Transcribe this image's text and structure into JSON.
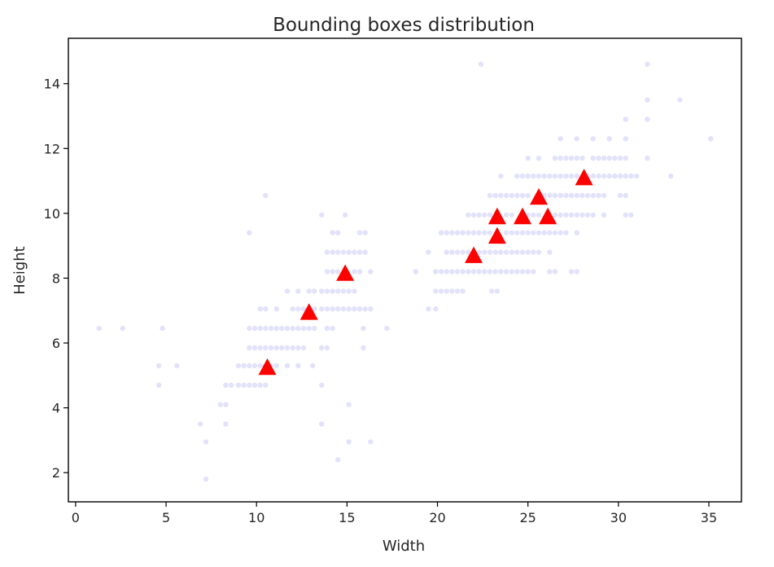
{
  "chart_data": {
    "type": "scatter",
    "title": "Bounding boxes distribution",
    "xlabel": "Width",
    "ylabel": "Height",
    "xlim": [
      -0.4,
      36.8
    ],
    "ylim": [
      1.1,
      15.4
    ],
    "xticks": [
      0,
      5,
      10,
      15,
      20,
      25,
      30,
      35
    ],
    "yticks": [
      2,
      4,
      6,
      8,
      10,
      12,
      14
    ],
    "grid": false,
    "legend": "none",
    "colors": {
      "boxes": "#e2e2fb",
      "centroids": "#ff0000",
      "axes": "#000000",
      "text": "#262626"
    },
    "series": [
      {
        "marker": "circle",
        "color": "#e2e2fb",
        "points": [
          [
            1.3,
            6.45
          ],
          [
            2.6,
            6.45
          ],
          [
            4.6,
            5.3
          ],
          [
            4.8,
            6.45
          ],
          [
            5.6,
            5.3
          ],
          [
            4.6,
            4.7
          ],
          [
            6.9,
            3.5
          ],
          [
            7.2,
            2.95
          ],
          [
            7.2,
            1.8
          ],
          [
            8.0,
            4.1
          ],
          [
            8.3,
            4.1
          ],
          [
            8.3,
            4.7
          ],
          [
            8.3,
            3.5
          ],
          [
            8.6,
            4.7
          ],
          [
            9.0,
            4.7
          ],
          [
            9.3,
            4.7
          ],
          [
            9.6,
            4.7
          ],
          [
            9.9,
            4.7
          ],
          [
            10.2,
            4.7
          ],
          [
            10.5,
            4.7
          ],
          [
            9.0,
            5.3
          ],
          [
            9.3,
            5.3
          ],
          [
            9.6,
            5.3
          ],
          [
            9.9,
            5.3
          ],
          [
            10.2,
            5.3
          ],
          [
            10.5,
            5.3
          ],
          [
            10.8,
            5.3
          ],
          [
            11.1,
            5.3
          ],
          [
            11.7,
            5.3
          ],
          [
            12.3,
            5.3
          ],
          [
            13.1,
            5.3
          ],
          [
            13.6,
            4.7
          ],
          [
            13.6,
            3.5
          ],
          [
            9.6,
            5.85
          ],
          [
            9.9,
            5.85
          ],
          [
            10.2,
            5.85
          ],
          [
            10.5,
            5.85
          ],
          [
            10.8,
            5.85
          ],
          [
            11.1,
            5.85
          ],
          [
            11.4,
            5.85
          ],
          [
            11.7,
            5.85
          ],
          [
            12.0,
            5.85
          ],
          [
            12.3,
            5.85
          ],
          [
            12.6,
            5.85
          ],
          [
            13.6,
            5.85
          ],
          [
            13.9,
            5.85
          ],
          [
            15.9,
            5.85
          ],
          [
            9.6,
            6.45
          ],
          [
            9.9,
            6.45
          ],
          [
            10.2,
            6.45
          ],
          [
            10.5,
            6.45
          ],
          [
            10.8,
            6.45
          ],
          [
            11.1,
            6.45
          ],
          [
            11.4,
            6.45
          ],
          [
            11.7,
            6.45
          ],
          [
            12.0,
            6.45
          ],
          [
            12.3,
            6.45
          ],
          [
            12.6,
            6.45
          ],
          [
            12.9,
            6.45
          ],
          [
            13.2,
            6.45
          ],
          [
            13.9,
            6.45
          ],
          [
            14.2,
            6.45
          ],
          [
            15.9,
            6.45
          ],
          [
            17.2,
            6.45
          ],
          [
            10.2,
            7.05
          ],
          [
            10.5,
            7.05
          ],
          [
            11.1,
            7.05
          ],
          [
            12.0,
            7.05
          ],
          [
            12.3,
            7.05
          ],
          [
            12.6,
            7.05
          ],
          [
            12.9,
            7.05
          ],
          [
            13.2,
            7.05
          ],
          [
            13.6,
            7.05
          ],
          [
            13.9,
            7.05
          ],
          [
            14.2,
            7.05
          ],
          [
            14.5,
            7.05
          ],
          [
            14.8,
            7.05
          ],
          [
            15.1,
            7.05
          ],
          [
            15.4,
            7.05
          ],
          [
            15.7,
            7.05
          ],
          [
            16.0,
            7.05
          ],
          [
            16.3,
            7.05
          ],
          [
            11.7,
            7.6
          ],
          [
            12.3,
            7.6
          ],
          [
            12.9,
            7.6
          ],
          [
            13.2,
            7.6
          ],
          [
            13.6,
            7.6
          ],
          [
            13.9,
            7.6
          ],
          [
            14.2,
            7.6
          ],
          [
            14.5,
            7.6
          ],
          [
            14.8,
            7.6
          ],
          [
            15.1,
            7.6
          ],
          [
            15.4,
            7.6
          ],
          [
            13.9,
            8.2
          ],
          [
            14.2,
            8.2
          ],
          [
            14.5,
            8.2
          ],
          [
            15.4,
            8.2
          ],
          [
            15.7,
            8.2
          ],
          [
            16.3,
            8.2
          ],
          [
            13.9,
            8.8
          ],
          [
            14.2,
            8.8
          ],
          [
            14.5,
            8.8
          ],
          [
            14.8,
            8.8
          ],
          [
            15.1,
            8.8
          ],
          [
            15.4,
            8.8
          ],
          [
            15.7,
            8.8
          ],
          [
            16.0,
            8.8
          ],
          [
            14.2,
            9.4
          ],
          [
            14.5,
            9.4
          ],
          [
            15.7,
            9.4
          ],
          [
            16.0,
            9.4
          ],
          [
            9.6,
            9.4
          ],
          [
            10.5,
            10.55
          ],
          [
            14.9,
            9.95
          ],
          [
            13.6,
            9.95
          ],
          [
            14.5,
            2.4
          ],
          [
            15.1,
            2.95
          ],
          [
            16.3,
            2.95
          ],
          [
            15.1,
            4.1
          ],
          [
            19.5,
            7.05
          ],
          [
            19.9,
            7.05
          ],
          [
            19.9,
            7.6
          ],
          [
            20.2,
            7.6
          ],
          [
            20.5,
            7.6
          ],
          [
            20.8,
            7.6
          ],
          [
            21.1,
            7.6
          ],
          [
            21.4,
            7.6
          ],
          [
            23.0,
            7.6
          ],
          [
            23.3,
            7.6
          ],
          [
            18.8,
            8.2
          ],
          [
            19.9,
            8.2
          ],
          [
            20.2,
            8.2
          ],
          [
            20.5,
            8.2
          ],
          [
            20.8,
            8.2
          ],
          [
            21.1,
            8.2
          ],
          [
            21.4,
            8.2
          ],
          [
            21.7,
            8.2
          ],
          [
            22.0,
            8.2
          ],
          [
            22.3,
            8.2
          ],
          [
            22.6,
            8.2
          ],
          [
            22.9,
            8.2
          ],
          [
            23.2,
            8.2
          ],
          [
            23.5,
            8.2
          ],
          [
            23.8,
            8.2
          ],
          [
            24.1,
            8.2
          ],
          [
            24.4,
            8.2
          ],
          [
            24.7,
            8.2
          ],
          [
            25.0,
            8.2
          ],
          [
            25.3,
            8.2
          ],
          [
            26.2,
            8.2
          ],
          [
            26.5,
            8.2
          ],
          [
            27.4,
            8.2
          ],
          [
            27.7,
            8.2
          ],
          [
            19.5,
            8.8
          ],
          [
            20.5,
            8.8
          ],
          [
            20.8,
            8.8
          ],
          [
            21.1,
            8.8
          ],
          [
            21.4,
            8.8
          ],
          [
            21.7,
            8.8
          ],
          [
            22.3,
            8.8
          ],
          [
            22.6,
            8.8
          ],
          [
            22.9,
            8.8
          ],
          [
            23.2,
            8.8
          ],
          [
            23.5,
            8.8
          ],
          [
            23.8,
            8.8
          ],
          [
            24.1,
            8.8
          ],
          [
            24.4,
            8.8
          ],
          [
            24.7,
            8.8
          ],
          [
            25.0,
            8.8
          ],
          [
            25.3,
            8.8
          ],
          [
            25.6,
            8.8
          ],
          [
            26.2,
            8.8
          ],
          [
            20.2,
            9.4
          ],
          [
            20.5,
            9.4
          ],
          [
            20.8,
            9.4
          ],
          [
            21.1,
            9.4
          ],
          [
            21.4,
            9.4
          ],
          [
            21.7,
            9.4
          ],
          [
            22.0,
            9.4
          ],
          [
            22.3,
            9.4
          ],
          [
            22.6,
            9.4
          ],
          [
            22.9,
            9.4
          ],
          [
            23.8,
            9.4
          ],
          [
            24.1,
            9.4
          ],
          [
            24.4,
            9.4
          ],
          [
            24.7,
            9.4
          ],
          [
            25.0,
            9.4
          ],
          [
            25.3,
            9.4
          ],
          [
            25.6,
            9.4
          ],
          [
            25.9,
            9.4
          ],
          [
            26.2,
            9.4
          ],
          [
            26.5,
            9.4
          ],
          [
            26.8,
            9.4
          ],
          [
            27.1,
            9.4
          ],
          [
            27.7,
            9.4
          ],
          [
            21.7,
            9.95
          ],
          [
            22.0,
            9.95
          ],
          [
            22.3,
            9.95
          ],
          [
            22.6,
            9.95
          ],
          [
            22.9,
            9.95
          ],
          [
            23.8,
            9.95
          ],
          [
            24.1,
            9.95
          ],
          [
            25.0,
            9.95
          ],
          [
            25.3,
            9.95
          ],
          [
            25.6,
            9.95
          ],
          [
            26.5,
            9.95
          ],
          [
            26.8,
            9.95
          ],
          [
            27.1,
            9.95
          ],
          [
            27.4,
            9.95
          ],
          [
            27.7,
            9.95
          ],
          [
            28.0,
            9.95
          ],
          [
            28.3,
            9.95
          ],
          [
            28.6,
            9.95
          ],
          [
            29.2,
            9.95
          ],
          [
            30.4,
            9.95
          ],
          [
            30.7,
            9.95
          ],
          [
            22.9,
            10.55
          ],
          [
            23.2,
            10.55
          ],
          [
            23.5,
            10.55
          ],
          [
            23.8,
            10.55
          ],
          [
            24.1,
            10.55
          ],
          [
            24.4,
            10.55
          ],
          [
            24.7,
            10.55
          ],
          [
            25.0,
            10.55
          ],
          [
            25.9,
            10.55
          ],
          [
            26.2,
            10.55
          ],
          [
            26.5,
            10.55
          ],
          [
            26.8,
            10.55
          ],
          [
            27.1,
            10.55
          ],
          [
            27.4,
            10.55
          ],
          [
            27.7,
            10.55
          ],
          [
            28.0,
            10.55
          ],
          [
            28.3,
            10.55
          ],
          [
            28.6,
            10.55
          ],
          [
            28.9,
            10.55
          ],
          [
            29.2,
            10.55
          ],
          [
            30.1,
            10.55
          ],
          [
            30.4,
            10.55
          ],
          [
            23.5,
            11.15
          ],
          [
            24.4,
            11.15
          ],
          [
            24.7,
            11.15
          ],
          [
            25.0,
            11.15
          ],
          [
            25.3,
            11.15
          ],
          [
            25.6,
            11.15
          ],
          [
            25.9,
            11.15
          ],
          [
            26.2,
            11.15
          ],
          [
            26.5,
            11.15
          ],
          [
            26.8,
            11.15
          ],
          [
            27.1,
            11.15
          ],
          [
            27.4,
            11.15
          ],
          [
            27.7,
            11.15
          ],
          [
            28.3,
            11.15
          ],
          [
            28.6,
            11.15
          ],
          [
            28.9,
            11.15
          ],
          [
            29.2,
            11.15
          ],
          [
            29.5,
            11.15
          ],
          [
            29.8,
            11.15
          ],
          [
            30.1,
            11.15
          ],
          [
            30.4,
            11.15
          ],
          [
            30.7,
            11.15
          ],
          [
            31.0,
            11.15
          ],
          [
            32.9,
            11.15
          ],
          [
            25.0,
            11.7
          ],
          [
            25.6,
            11.7
          ],
          [
            26.5,
            11.7
          ],
          [
            26.8,
            11.7
          ],
          [
            27.1,
            11.7
          ],
          [
            27.4,
            11.7
          ],
          [
            27.7,
            11.7
          ],
          [
            28.0,
            11.7
          ],
          [
            28.6,
            11.7
          ],
          [
            28.9,
            11.7
          ],
          [
            29.2,
            11.7
          ],
          [
            29.5,
            11.7
          ],
          [
            29.8,
            11.7
          ],
          [
            30.1,
            11.7
          ],
          [
            30.4,
            11.7
          ],
          [
            31.6,
            11.7
          ],
          [
            26.8,
            12.3
          ],
          [
            27.7,
            12.3
          ],
          [
            28.6,
            12.3
          ],
          [
            29.5,
            12.3
          ],
          [
            30.4,
            12.3
          ],
          [
            30.4,
            12.9
          ],
          [
            31.6,
            12.9
          ],
          [
            31.6,
            13.5
          ],
          [
            33.4,
            13.5
          ],
          [
            31.6,
            14.6
          ],
          [
            22.4,
            14.6
          ],
          [
            35.1,
            12.3
          ]
        ]
      },
      {
        "marker": "triangle",
        "color": "#ff0000",
        "points": [
          [
            10.6,
            5.25
          ],
          [
            12.9,
            6.95
          ],
          [
            14.9,
            8.15
          ],
          [
            22.0,
            8.7
          ],
          [
            23.3,
            9.3
          ],
          [
            23.3,
            9.9
          ],
          [
            24.7,
            9.9
          ],
          [
            26.1,
            9.9
          ],
          [
            25.6,
            10.5
          ],
          [
            28.1,
            11.1
          ]
        ]
      }
    ]
  }
}
